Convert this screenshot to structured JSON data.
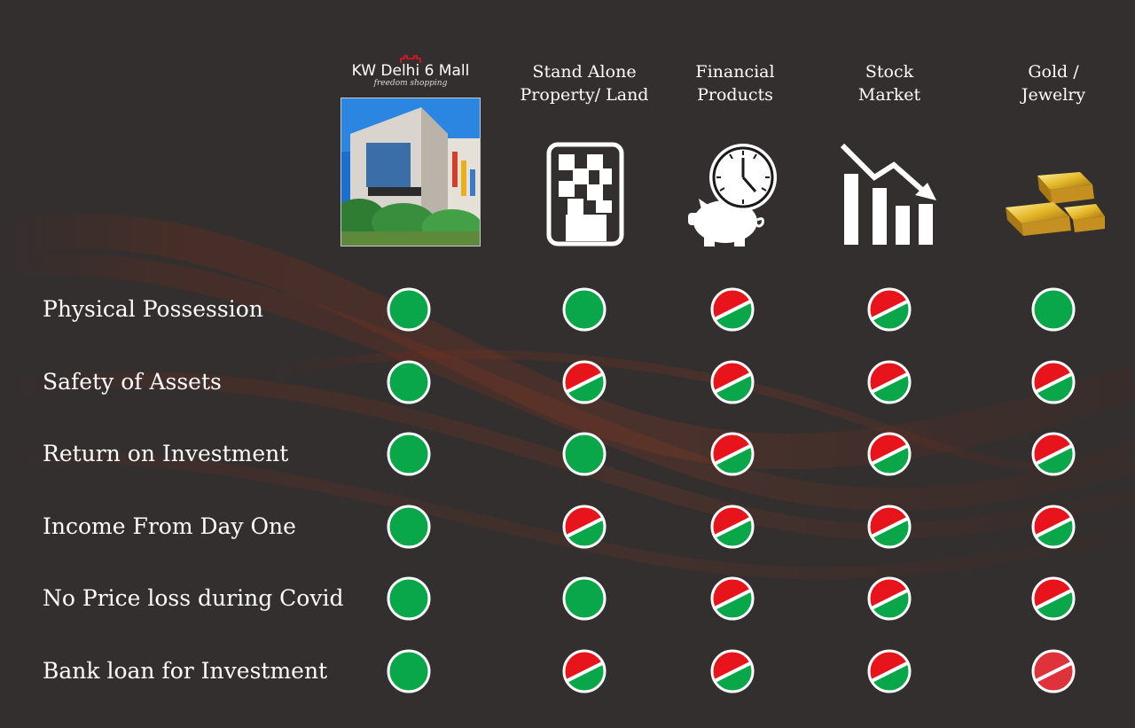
{
  "brand": {
    "name": "KW Delhi 6 Mall",
    "tagline": "freedom shopping"
  },
  "columns": [
    {
      "key": "kw_delhi6",
      "lines": [
        "KW Delhi 6 Mall"
      ]
    },
    {
      "key": "standalone",
      "lines": [
        "Stand Alone",
        "Property/ Land"
      ],
      "icon": "building-icon"
    },
    {
      "key": "financial",
      "lines": [
        "Financial",
        "Products"
      ],
      "icon": "piggy-bank-clock-icon"
    },
    {
      "key": "stock",
      "lines": [
        "Stock",
        "Market"
      ],
      "icon": "downtrend-chart-icon"
    },
    {
      "key": "gold",
      "lines": [
        "Gold /",
        "Jewelry"
      ],
      "icon": "gold-bars-icon"
    }
  ],
  "rows": [
    {
      "label": "Physical Possession",
      "marks": [
        "yes",
        "yes",
        "no",
        "no",
        "yes"
      ]
    },
    {
      "label": "Safety of Assets",
      "marks": [
        "yes",
        "no",
        "no",
        "no",
        "no"
      ]
    },
    {
      "label": "Return on Investment",
      "marks": [
        "yes",
        "yes",
        "no",
        "no",
        "no"
      ]
    },
    {
      "label": "Income From Day One",
      "marks": [
        "yes",
        "no",
        "no",
        "no",
        "no"
      ]
    },
    {
      "label": "No Price loss during Covid",
      "marks": [
        "yes",
        "yes",
        "no",
        "no",
        "no"
      ]
    },
    {
      "label": "Bank loan for Investment",
      "marks": [
        "yes",
        "no",
        "no",
        "no",
        "none"
      ]
    }
  ],
  "colors": {
    "background": "#332f2e",
    "yes": "#0aa64a",
    "no_top": "#e8141b",
    "no_bottom": "#0aa64a",
    "none": "#e0323a",
    "wave": "#8a2a1a",
    "gold": "#e5b82a"
  }
}
